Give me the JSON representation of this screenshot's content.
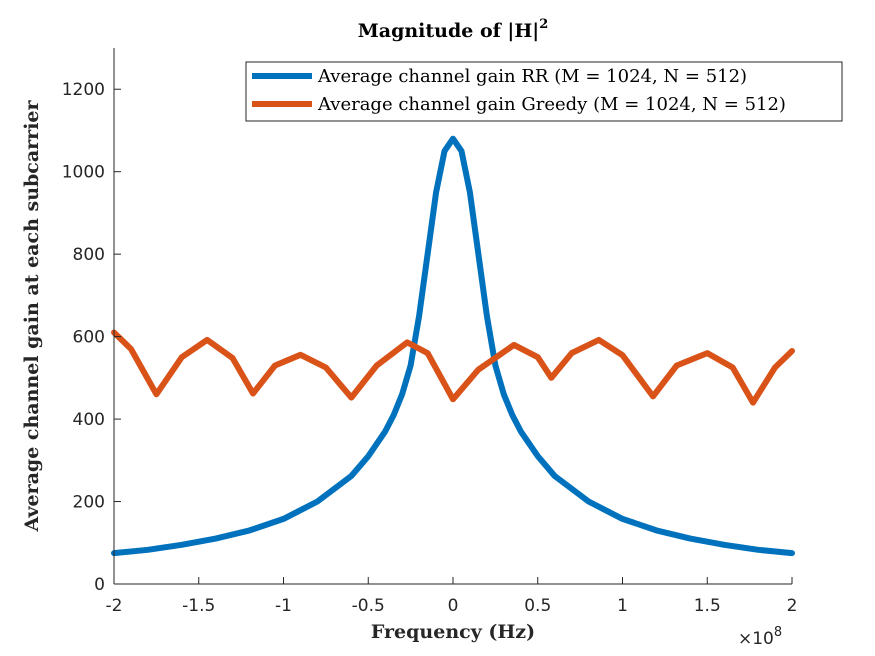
{
  "chart_data": {
    "type": "line",
    "title": "Magnitude of |H|",
    "title_superscript": "2",
    "xlabel": "Frequency (Hz)",
    "ylabel": "Average channel gain at each subcarrier",
    "x_exponent_base": "×10",
    "x_exponent_power": "8",
    "xlim": [
      -2,
      2
    ],
    "ylim": [
      0,
      1300
    ],
    "x_ticks": [
      -2,
      -1.5,
      -1,
      -0.5,
      0,
      0.5,
      1,
      1.5,
      2
    ],
    "x_tick_labels": [
      "-2",
      "-1.5",
      "-1",
      "-0.5",
      "0",
      "0.5",
      "1",
      "1.5",
      "2"
    ],
    "y_ticks": [
      0,
      200,
      400,
      600,
      800,
      1000,
      1200
    ],
    "y_tick_labels": [
      "0",
      "200",
      "400",
      "600",
      "800",
      "1000",
      "1200"
    ],
    "grid": false,
    "legend_position": "top-right",
    "series": [
      {
        "name": "Average channel gain RR (M = 1024, N = 512)",
        "color": "#0072BD",
        "x": [
          -2,
          -1.8,
          -1.6,
          -1.4,
          -1.2,
          -1.0,
          -0.8,
          -0.6,
          -0.5,
          -0.4,
          -0.35,
          -0.3,
          -0.25,
          -0.2,
          -0.15,
          -0.1,
          -0.05,
          0,
          0.05,
          0.1,
          0.15,
          0.2,
          0.25,
          0.3,
          0.35,
          0.4,
          0.5,
          0.6,
          0.8,
          1.0,
          1.2,
          1.4,
          1.6,
          1.8,
          2
        ],
        "y": [
          75,
          83,
          95,
          110,
          130,
          158,
          200,
          262,
          310,
          370,
          410,
          460,
          530,
          650,
          800,
          950,
          1050,
          1080,
          1050,
          950,
          800,
          650,
          530,
          460,
          410,
          370,
          310,
          262,
          200,
          158,
          130,
          110,
          95,
          83,
          75
        ]
      },
      {
        "name": "Average channel gain Greedy (M = 1024, N = 512)",
        "color": "#D95319",
        "x": [
          -2,
          -1.9,
          -1.75,
          -1.6,
          -1.45,
          -1.3,
          -1.18,
          -1.05,
          -0.9,
          -0.75,
          -0.6,
          -0.45,
          -0.27,
          -0.15,
          0,
          0.15,
          0.36,
          0.5,
          0.58,
          0.7,
          0.86,
          1.0,
          1.18,
          1.32,
          1.5,
          1.65,
          1.77,
          1.9,
          2
        ],
        "y": [
          610,
          570,
          460,
          550,
          592,
          548,
          462,
          530,
          556,
          525,
          452,
          530,
          586,
          560,
          448,
          520,
          580,
          550,
          500,
          560,
          592,
          555,
          455,
          530,
          560,
          525,
          440,
          525,
          565
        ]
      }
    ]
  }
}
